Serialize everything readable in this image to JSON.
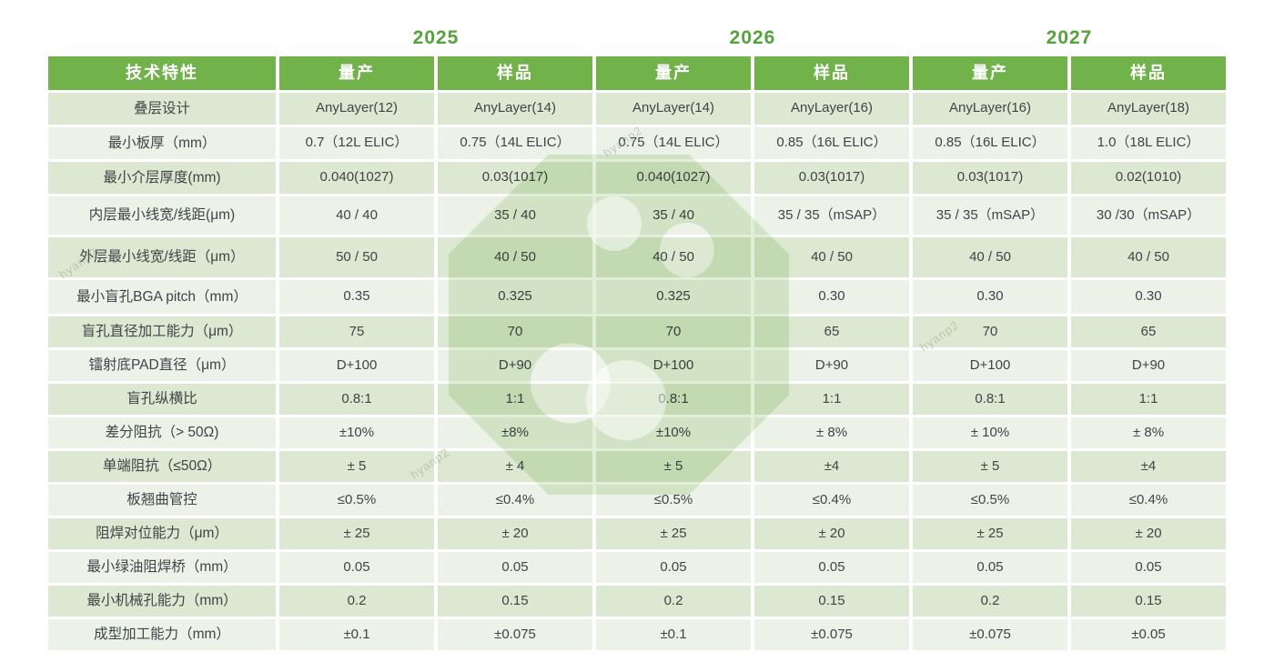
{
  "years": [
    "2025",
    "2026",
    "2027"
  ],
  "header": {
    "feature_col": "技术特性",
    "col_labels": [
      "量产",
      "样品",
      "量产",
      "样品",
      "量产",
      "样品"
    ]
  },
  "rows": [
    {
      "label": "叠层设计",
      "values": [
        "AnyLayer(12)",
        "AnyLayer(14)",
        "AnyLayer(14)",
        "AnyLayer(16)",
        "AnyLayer(16)",
        "AnyLayer(18)"
      ]
    },
    {
      "label": "最小板厚（mm）",
      "values": [
        "0.7（12L ELIC）",
        "0.75（14L ELIC）",
        "0.75（14L ELIC）",
        "0.85（16L ELIC）",
        "0.85（16L ELIC）",
        "1.0（18L ELIC）"
      ]
    },
    {
      "label": "最小介层厚度(mm)",
      "values": [
        "0.040(1027)",
        "0.03(1017)",
        "0.040(1027)",
        "0.03(1017)",
        "0.03(1017)",
        "0.02(1010)"
      ]
    },
    {
      "label": "内层最小线宽/线距(μm)",
      "values": [
        "40 / 40",
        "35 / 40",
        "35 / 40",
        "35 / 35（mSAP）",
        "35 / 35（mSAP）",
        "30 /30（mSAP）"
      ]
    },
    {
      "label": "外层最小线宽/线距（μm）",
      "values": [
        "50 / 50",
        "40 / 50",
        "40 / 50",
        "40 / 50",
        "40 / 50",
        "40 / 50"
      ]
    },
    {
      "label": "最小盲孔BGA pitch（mm）",
      "values": [
        "0.35",
        "0.325",
        "0.325",
        "0.30",
        "0.30",
        "0.30"
      ]
    },
    {
      "label": "盲孔直径加工能力（μm）",
      "values": [
        "75",
        "70",
        "70",
        "65",
        "70",
        "65"
      ]
    },
    {
      "label": "镭射底PAD直径（μm）",
      "values": [
        "D+100",
        "D+90",
        "D+100",
        "D+90",
        "D+100",
        "D+90"
      ]
    },
    {
      "label": "盲孔纵横比",
      "values": [
        "0.8:1",
        "1:1",
        "0.8:1",
        "1:1",
        "0.8:1",
        "1:1"
      ]
    },
    {
      "label": "差分阻抗（> 50Ω)",
      "values": [
        "±10%",
        "±8%",
        "±10%",
        "± 8%",
        "± 10%",
        "± 8%"
      ]
    },
    {
      "label": "单端阻抗（≤50Ω）",
      "values": [
        "± 5",
        "± 4",
        "± 5",
        "±4",
        "± 5",
        "±4"
      ]
    },
    {
      "label": "板翘曲管控",
      "values": [
        "≤0.5%",
        "≤0.4%",
        "≤0.5%",
        "≤0.4%",
        "≤0.5%",
        "≤0.4%"
      ]
    },
    {
      "label": "阻焊对位能力（μm）",
      "values": [
        "± 25",
        "± 20",
        "± 25",
        "± 20",
        "± 25",
        "± 20"
      ]
    },
    {
      "label": "最小绿油阻焊桥（mm）",
      "values": [
        "0.05",
        "0.05",
        "0.05",
        "0.05",
        "0.05",
        "0.05"
      ]
    },
    {
      "label": "最小机械孔能力（mm）",
      "values": [
        "0.2",
        "0.15",
        "0.2",
        "0.15",
        "0.2",
        "0.15"
      ]
    },
    {
      "label": "成型加工能力（mm）",
      "values": [
        "±0.1",
        "±0.075",
        "±0.1",
        "±0.075",
        "±0.075",
        "±0.05"
      ]
    }
  ],
  "watermark": {
    "text": "hyanp2"
  },
  "colors": {
    "header_green": "#71b24b",
    "year_green": "#55a13c",
    "row_dark": "#dce8d1",
    "row_light": "#edf2e9",
    "cell_text": "#3f4447",
    "logo_green": "#7ab44f"
  }
}
